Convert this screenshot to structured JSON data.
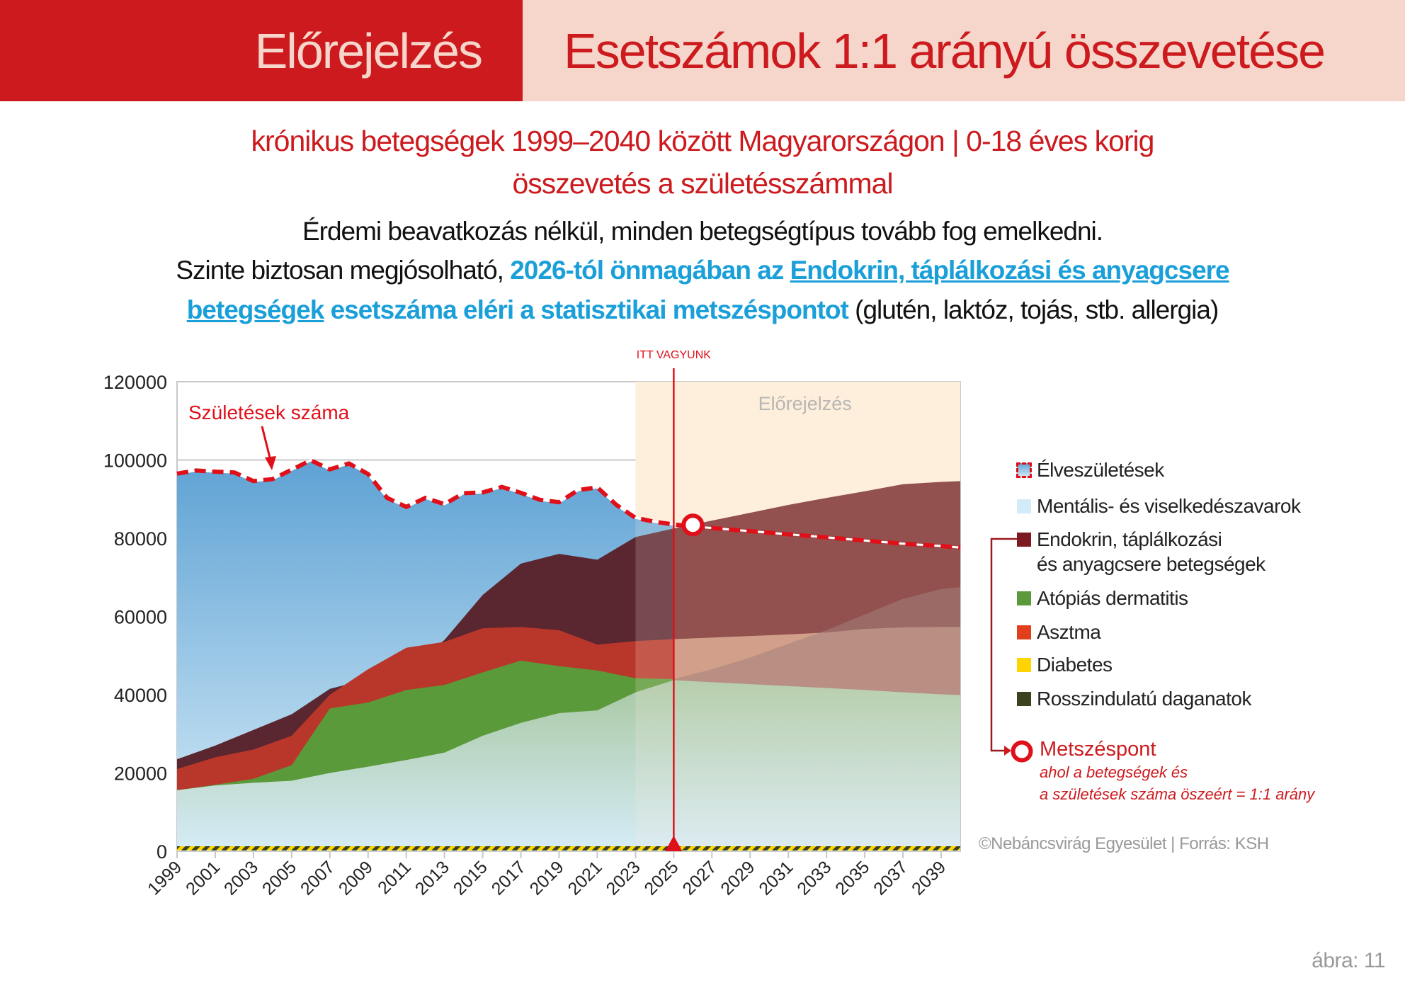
{
  "header": {
    "left_title": "Előrejelzés",
    "right_title": "Esetszámok 1:1 arányú összevetése"
  },
  "subtitle": {
    "line1": "krónikus betegségek 1999–2040 között Magyarországon  |  0-18 éves korig",
    "line2": "összevetés a születésszámmal"
  },
  "body": {
    "line1": "Érdemi beavatkozás nélkül, minden betegségtípus tovább fog emelkedni.",
    "line2_plain": "Szinte biztosan megjósolható, ",
    "line2_highlight": "2026-tól önmagában az ",
    "line2_link": "Endokrin, táplálkozási és anyagcsere ",
    "line3_link": "betegségek",
    "line3_highlight": " esetszáma eléri a statisztikai metszéspontot",
    "line3_plain": " (glutén, laktóz, tojás, stb. allergia)"
  },
  "chart_data": {
    "type": "area",
    "title": "",
    "ylim": [
      0,
      120000
    ],
    "yticks": [
      0,
      20000,
      40000,
      60000,
      80000,
      100000,
      120000
    ],
    "ytick_labels": [
      "0",
      "20000",
      "40000",
      "60000",
      "80000",
      "100000",
      "120000"
    ],
    "xlim": [
      1999,
      2040
    ],
    "xtick_labels": [
      "1999",
      "2001",
      "2003",
      "2005",
      "2007",
      "2009",
      "2011",
      "2013",
      "2015",
      "2017",
      "2019",
      "2021",
      "2023",
      "2025",
      "2027",
      "2029",
      "2031",
      "2033",
      "2035",
      "2037",
      "2039"
    ],
    "grid": true,
    "forecast_start": 2023,
    "forecast_label": "Előrejelzés",
    "now_marker": {
      "year": 2025,
      "label": "ITT VAGYUNK"
    },
    "intersection": {
      "year": 2026,
      "value": 83400
    },
    "births_annotation": "Születések száma",
    "births": {
      "name": "Élveszületések",
      "years": [
        1999,
        2000,
        2001,
        2002,
        2003,
        2004,
        2005,
        2006,
        2007,
        2008,
        2009,
        2010,
        2011,
        2012,
        2013,
        2014,
        2015,
        2016,
        2017,
        2018,
        2019,
        2020,
        2021,
        2022,
        2023,
        2024,
        2025,
        2026,
        2027,
        2028,
        2029,
        2030,
        2031,
        2032,
        2033,
        2034,
        2035,
        2036,
        2037,
        2038,
        2039,
        2040
      ],
      "values": [
        96500,
        97300,
        97000,
        96800,
        94600,
        95100,
        97500,
        99900,
        97600,
        99100,
        96400,
        90300,
        88000,
        90300,
        88700,
        91500,
        91700,
        93100,
        91600,
        89800,
        89200,
        92300,
        93000,
        88500,
        85200,
        84200,
        83500,
        83000,
        82600,
        82200,
        81800,
        81400,
        81000,
        80600,
        80200,
        79800,
        79400,
        79000,
        78600,
        78300,
        78000,
        77600
      ]
    },
    "years": [
      1999,
      2001,
      2003,
      2005,
      2007,
      2009,
      2011,
      2013,
      2015,
      2017,
      2019,
      2021,
      2023,
      2025,
      2027,
      2029,
      2031,
      2033,
      2035,
      2037,
      2039,
      2040
    ],
    "series_note": "stacked cumulative tops",
    "series": [
      {
        "name": "Endokrin, táplálkozási és anyagcsere betegségek",
        "color": "#7b1a22",
        "values": [
          23500,
          27000,
          31000,
          35000,
          41500,
          44000,
          46000,
          54000,
          65500,
          73500,
          76000,
          74500,
          80300,
          82500,
          84500,
          86500,
          88500,
          90300,
          92000,
          93800,
          94400,
          94600
        ]
      },
      {
        "name": "Asztma",
        "color": "#e2401c",
        "values": [
          21000,
          24000,
          26000,
          29500,
          40000,
          46500,
          52000,
          53500,
          57000,
          57300,
          56500,
          52800,
          53700,
          54200,
          54600,
          55000,
          55400,
          55900,
          56800,
          57200,
          57300,
          57300
        ]
      },
      {
        "name": "Atópiás dermatitis",
        "color": "#5a9a3a",
        "values": [
          15600,
          17000,
          18500,
          22000,
          36500,
          38000,
          41200,
          42500,
          45700,
          48700,
          47300,
          46200,
          44200,
          44000,
          46500,
          49500,
          53000,
          56500,
          60500,
          64500,
          67000,
          67500
        ]
      },
      {
        "name": "Mentális- és viselkedészavarok",
        "color": "#d3eaf8",
        "values": [
          15600,
          16800,
          17500,
          18000,
          20000,
          21600,
          23300,
          25200,
          29500,
          32800,
          35300,
          36000,
          40600,
          43700,
          43200,
          42700,
          42200,
          41700,
          41200,
          40600,
          40100,
          39900
        ]
      },
      {
        "name": "Diabetes",
        "color": "#ffd400",
        "values": [
          600,
          600,
          600,
          600,
          700,
          700,
          700,
          800,
          800,
          800,
          900,
          900,
          900,
          1000,
          1000,
          1000,
          1100,
          1100,
          1100,
          1200,
          1200,
          1200
        ]
      },
      {
        "name": "Rosszindulatú daganatok",
        "color": "#3a4220",
        "values": [
          300,
          300,
          300,
          300,
          350,
          350,
          350,
          400,
          400,
          400,
          450,
          450,
          450,
          500,
          500,
          500,
          550,
          550,
          550,
          600,
          600,
          600
        ]
      }
    ]
  },
  "legend": {
    "items": [
      {
        "label": "Élveszületések"
      },
      {
        "label": "Mentális- és viselkedészavarok",
        "color": "#d3eaf8"
      },
      {
        "label": "Endokrin, táplálkozási",
        "label2": "és anyagcsere betegségek",
        "color": "#7b1a22"
      },
      {
        "label": "Atópiás dermatitis",
        "color": "#5a9a3a"
      },
      {
        "label": "Asztma",
        "color": "#e2401c"
      },
      {
        "label": "Diabetes",
        "color": "#ffd400"
      },
      {
        "label": "Rosszindulatú daganatok",
        "color": "#3a4220"
      }
    ],
    "intersection_title": "Metszéspont",
    "intersection_desc1": "ahol a betegségek és",
    "intersection_desc2": "a születések száma öszeért = 1:1 arány"
  },
  "footer": {
    "credit": "©Nebáncsvirág Egyesület  |  Forrás: KSH",
    "figure": "ábra: 11"
  },
  "colors": {
    "brand_red": "#cc1a1e",
    "header_pink": "#f6d6ca",
    "highlight_blue": "#1a9fd9",
    "forecast_bg": "#fdf0dc"
  }
}
